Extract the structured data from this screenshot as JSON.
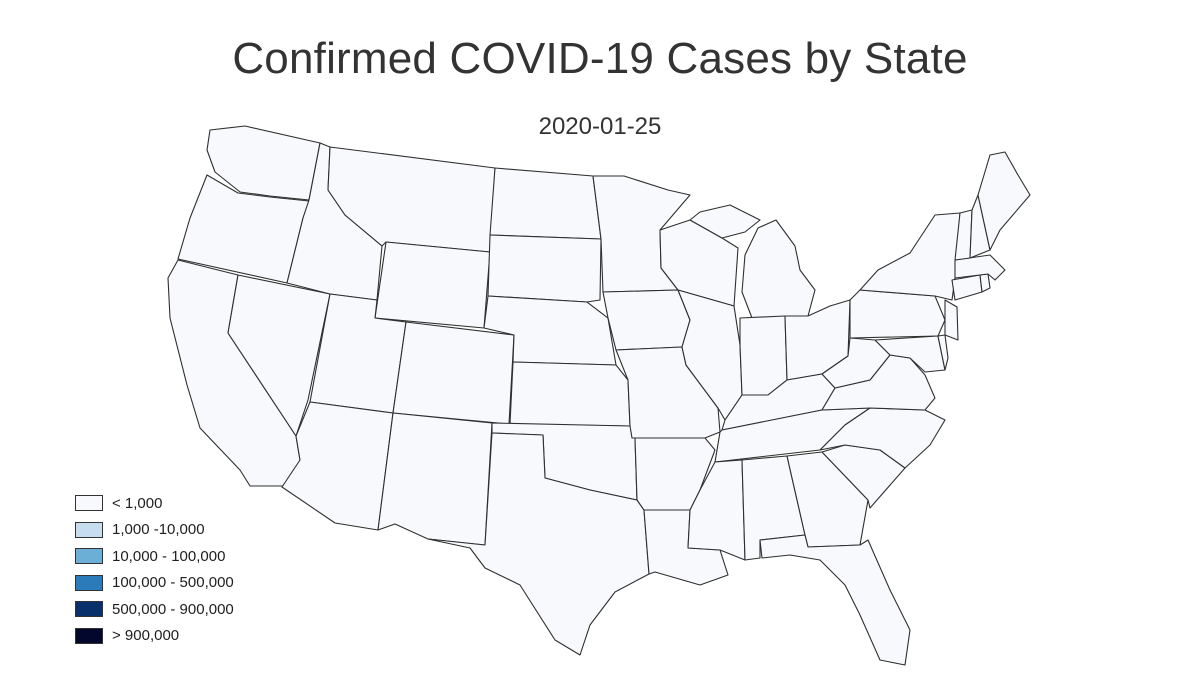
{
  "title": "Confirmed COVID-19 Cases by State",
  "date": "2020-01-25",
  "colors": {
    "background": "#ffffff",
    "state_fill": "#f8f9fd",
    "state_stroke": "#2f2f2f"
  },
  "legend": [
    {
      "label": "< 1,000",
      "color": "#f8f9fd"
    },
    {
      "label": "1,000 -10,000",
      "color": "#c7dcef"
    },
    {
      "label": "10,000 - 100,000",
      "color": "#6baed6"
    },
    {
      "label": "100,000 - 500,000",
      "color": "#2b7bba"
    },
    {
      "label": "500,000 - 900,000",
      "color": "#08306b"
    },
    {
      "label": "> 900,000",
      "color": "#03072b"
    }
  ]
}
